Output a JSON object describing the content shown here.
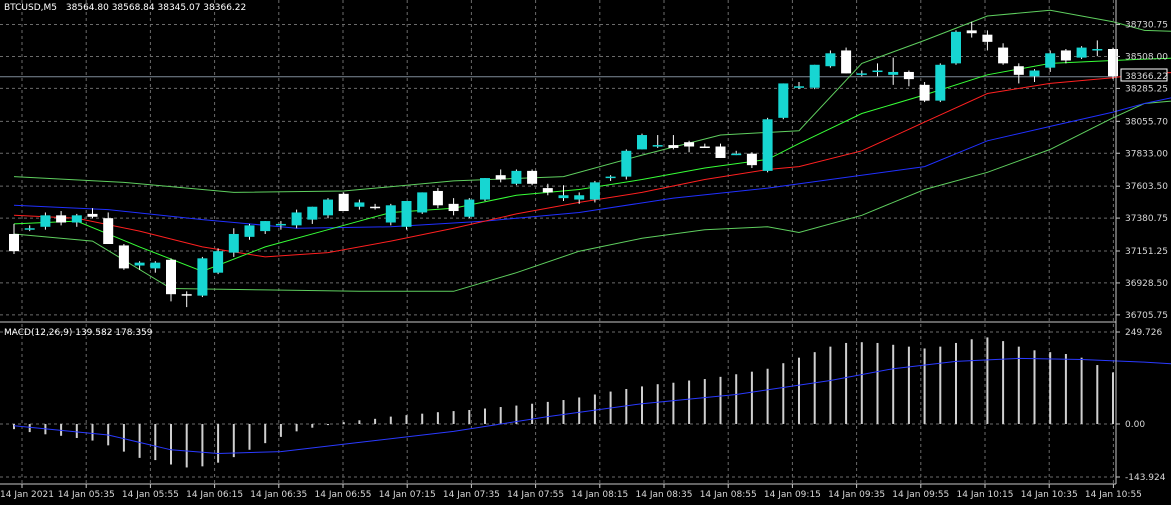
{
  "header": {
    "symbol": "BTCUSD,M5",
    "ohlc": "38564.80 38568.84 38345.07 38366.22"
  },
  "macd_header": {
    "label": "MACD(12,26,9) 139.582 178.359"
  },
  "current_price_label": "38366.22",
  "colors": {
    "background": "#000000",
    "grid": "#6b6b6b",
    "bull_candle": "#17d6d2",
    "bear_candle": "#ffffff",
    "bollinger": "#5fcf5f",
    "ma_fast": "#37ff37",
    "ma_mid": "#ff2020",
    "ma_slow": "#2030ff",
    "macd_hist": "#d0d0d0",
    "macd_signal": "#2a3aff",
    "price_line": "#7f8c99"
  },
  "chart_data": [
    {
      "type": "candlestick",
      "title": "BTCUSD,M5",
      "current_price": 38366.22,
      "ylim": [
        36670,
        38860
      ],
      "y_ticks": [
        {
          "value": 38730.75,
          "label": "38730.75"
        },
        {
          "value": 38508.0,
          "label": "38508.00"
        },
        {
          "value": 38285.25,
          "label": "38285.25"
        },
        {
          "value": 38055.7,
          "label": "38055.70"
        },
        {
          "value": 37833.0,
          "label": "37833.00"
        },
        {
          "value": 37603.5,
          "label": "37603.50"
        },
        {
          "value": 37380.75,
          "label": "37380.75"
        },
        {
          "value": 37151.25,
          "label": "37151.25"
        },
        {
          "value": 36928.5,
          "label": "36928.50"
        },
        {
          "value": 36705.75,
          "label": "36705.75"
        }
      ],
      "x_labels": [
        "14 Jan 2021",
        "14 Jan 05:35",
        "14 Jan 05:55",
        "14 Jan 06:15",
        "14 Jan 06:35",
        "14 Jan 06:55",
        "14 Jan 07:15",
        "14 Jan 07:35",
        "14 Jan 07:55",
        "14 Jan 08:15",
        "14 Jan 08:35",
        "14 Jan 08:55",
        "14 Jan 09:15",
        "14 Jan 09:35",
        "14 Jan 09:55",
        "14 Jan 10:15",
        "14 Jan 10:35",
        "14 Jan 10:55"
      ],
      "candles": [
        [
          37270,
          37340,
          37130,
          37150
        ],
        [
          37310,
          37330,
          37290,
          37310
        ],
        [
          37320,
          37420,
          37300,
          37400
        ],
        [
          37400,
          37430,
          37330,
          37350
        ],
        [
          37350,
          37410,
          37320,
          37400
        ],
        [
          37410,
          37450,
          37380,
          37390
        ],
        [
          37380,
          37420,
          37200,
          37200
        ],
        [
          37190,
          37200,
          37020,
          37030
        ],
        [
          37050,
          37080,
          37020,
          37070
        ],
        [
          37030,
          37080,
          37000,
          37070
        ],
        [
          37090,
          37100,
          36800,
          36850
        ],
        [
          36850,
          36870,
          36760,
          36840
        ],
        [
          36840,
          37110,
          36830,
          37100
        ],
        [
          37000,
          37170,
          36990,
          37150
        ],
        [
          37140,
          37310,
          37110,
          37270
        ],
        [
          37250,
          37340,
          37230,
          37330
        ],
        [
          37290,
          37360,
          37270,
          37360
        ],
        [
          37330,
          37360,
          37300,
          37340
        ],
        [
          37330,
          37440,
          37310,
          37420
        ],
        [
          37370,
          37460,
          37340,
          37460
        ],
        [
          37400,
          37520,
          37380,
          37510
        ],
        [
          37550,
          37560,
          37430,
          37430
        ],
        [
          37460,
          37510,
          37440,
          37490
        ],
        [
          37460,
          37480,
          37440,
          37450
        ],
        [
          37350,
          37480,
          37330,
          37470
        ],
        [
          37320,
          37500,
          37300,
          37500
        ],
        [
          37420,
          37560,
          37410,
          37560
        ],
        [
          37570,
          37590,
          37450,
          37470
        ],
        [
          37480,
          37520,
          37400,
          37430
        ],
        [
          37390,
          37520,
          37380,
          37510
        ],
        [
          37510,
          37660,
          37500,
          37660
        ],
        [
          37680,
          37720,
          37630,
          37650
        ],
        [
          37620,
          37720,
          37610,
          37710
        ],
        [
          37710,
          37720,
          37610,
          37620
        ],
        [
          37590,
          37620,
          37540,
          37560
        ],
        [
          37520,
          37610,
          37500,
          37540
        ],
        [
          37510,
          37560,
          37480,
          37540
        ],
        [
          37510,
          37640,
          37490,
          37630
        ],
        [
          37660,
          37680,
          37640,
          37670
        ],
        [
          37670,
          37860,
          37650,
          37850
        ],
        [
          37860,
          37970,
          37860,
          37960
        ],
        [
          37880,
          37960,
          37870,
          37890
        ],
        [
          37890,
          37960,
          37860,
          37870
        ],
        [
          37910,
          37920,
          37840,
          37880
        ],
        [
          37880,
          37900,
          37870,
          37870
        ],
        [
          37880,
          37900,
          37800,
          37800
        ],
        [
          37830,
          37850,
          37820,
          37830
        ],
        [
          37830,
          37840,
          37730,
          37750
        ],
        [
          37710,
          38080,
          37700,
          38070
        ],
        [
          38080,
          38320,
          38070,
          38320
        ],
        [
          38290,
          38330,
          38280,
          38300
        ],
        [
          38290,
          38450,
          38280,
          38450
        ],
        [
          38440,
          38550,
          38430,
          38530
        ],
        [
          38550,
          38570,
          38390,
          38390
        ],
        [
          38380,
          38410,
          38370,
          38390
        ],
        [
          38400,
          38460,
          38370,
          38410
        ],
        [
          38380,
          38500,
          38310,
          38400
        ],
        [
          38400,
          38410,
          38300,
          38350
        ],
        [
          38310,
          38330,
          38190,
          38200
        ],
        [
          38200,
          38460,
          38190,
          38450
        ],
        [
          38460,
          38690,
          38450,
          38680
        ],
        [
          38690,
          38750,
          38640,
          38670
        ],
        [
          38660,
          38690,
          38550,
          38610
        ],
        [
          38570,
          38600,
          38450,
          38460
        ],
        [
          38440,
          38460,
          38320,
          38380
        ],
        [
          38370,
          38420,
          38330,
          38410
        ],
        [
          38430,
          38550,
          38400,
          38530
        ],
        [
          38550,
          38560,
          38460,
          38480
        ],
        [
          38500,
          38580,
          38490,
          38570
        ],
        [
          38550,
          38620,
          38510,
          38560
        ],
        [
          38560,
          38570,
          38350,
          38370
        ]
      ],
      "bollinger_upper": [
        [
          0,
          37670
        ],
        [
          7,
          37630
        ],
        [
          14,
          37560
        ],
        [
          21,
          37570
        ],
        [
          28,
          37640
        ],
        [
          35,
          37670
        ],
        [
          40,
          37820
        ],
        [
          45,
          37960
        ],
        [
          50,
          37990
        ],
        [
          54,
          38460
        ],
        [
          58,
          38620
        ],
        [
          62,
          38790
        ],
        [
          66,
          38830
        ],
        [
          70,
          38750
        ],
        [
          72,
          38690
        ],
        [
          75,
          38680
        ]
      ],
      "bollinger_lower": [
        [
          0,
          37270
        ],
        [
          5,
          37220
        ],
        [
          10,
          36890
        ],
        [
          16,
          36880
        ],
        [
          22,
          36870
        ],
        [
          28,
          36870
        ],
        [
          32,
          37000
        ],
        [
          36,
          37150
        ],
        [
          40,
          37240
        ],
        [
          44,
          37300
        ],
        [
          48,
          37320
        ],
        [
          50,
          37280
        ],
        [
          54,
          37400
        ],
        [
          58,
          37580
        ],
        [
          62,
          37700
        ],
        [
          66,
          37860
        ],
        [
          70,
          38080
        ],
        [
          72,
          38180
        ],
        [
          75,
          38210
        ]
      ],
      "ma_fast": [
        [
          0,
          37340
        ],
        [
          4,
          37360
        ],
        [
          8,
          37180
        ],
        [
          12,
          37010
        ],
        [
          16,
          37180
        ],
        [
          20,
          37300
        ],
        [
          24,
          37420
        ],
        [
          28,
          37450
        ],
        [
          32,
          37540
        ],
        [
          36,
          37580
        ],
        [
          40,
          37650
        ],
        [
          44,
          37730
        ],
        [
          48,
          37790
        ],
        [
          50,
          37900
        ],
        [
          54,
          38110
        ],
        [
          58,
          38240
        ],
        [
          62,
          38380
        ],
        [
          66,
          38460
        ],
        [
          70,
          38480
        ],
        [
          72,
          38490
        ],
        [
          75,
          38500
        ]
      ],
      "ma_mid": [
        [
          0,
          37400
        ],
        [
          4,
          37380
        ],
        [
          8,
          37290
        ],
        [
          12,
          37180
        ],
        [
          16,
          37110
        ],
        [
          20,
          37140
        ],
        [
          24,
          37220
        ],
        [
          28,
          37310
        ],
        [
          32,
          37410
        ],
        [
          36,
          37490
        ],
        [
          40,
          37560
        ],
        [
          44,
          37650
        ],
        [
          48,
          37720
        ],
        [
          50,
          37740
        ],
        [
          54,
          37850
        ],
        [
          58,
          38050
        ],
        [
          62,
          38250
        ],
        [
          66,
          38320
        ],
        [
          70,
          38360
        ],
        [
          72,
          38390
        ],
        [
          75,
          38400
        ]
      ],
      "ma_slow": [
        [
          0,
          37470
        ],
        [
          6,
          37440
        ],
        [
          12,
          37370
        ],
        [
          18,
          37310
        ],
        [
          24,
          37320
        ],
        [
          30,
          37360
        ],
        [
          36,
          37420
        ],
        [
          42,
          37520
        ],
        [
          48,
          37590
        ],
        [
          52,
          37650
        ],
        [
          58,
          37740
        ],
        [
          62,
          37920
        ],
        [
          66,
          38020
        ],
        [
          70,
          38120
        ],
        [
          72,
          38180
        ],
        [
          75,
          38250
        ]
      ]
    },
    {
      "type": "bar",
      "title": "MACD(12,26,9) 139.582 178.359",
      "macd_value": 139.582,
      "signal_value": 178.359,
      "ylim": [
        -143.924,
        249.726
      ],
      "y_ticks": [
        {
          "value": 249.726,
          "label": "249.726"
        },
        {
          "value": 0,
          "label": "0.00"
        },
        {
          "value": -143.924,
          "label": "-143.924"
        }
      ],
      "histogram": [
        -14,
        -22,
        -28,
        -32,
        -38,
        -45,
        -58,
        -75,
        -92,
        -98,
        -110,
        -118,
        -115,
        -105,
        -90,
        -70,
        -52,
        -35,
        -20,
        -10,
        -3,
        5,
        10,
        14,
        20,
        24,
        28,
        32,
        35,
        38,
        42,
        46,
        50,
        55,
        60,
        65,
        72,
        80,
        88,
        95,
        102,
        108,
        112,
        118,
        122,
        128,
        135,
        142,
        150,
        165,
        180,
        195,
        210,
        220,
        222,
        220,
        215,
        210,
        205,
        210,
        220,
        230,
        235,
        225,
        210,
        200,
        195,
        190,
        180,
        160,
        140
      ],
      "signal": [
        [
          0,
          -5
        ],
        [
          6,
          -30
        ],
        [
          10,
          -70
        ],
        [
          13,
          -80
        ],
        [
          17,
          -75
        ],
        [
          22,
          -50
        ],
        [
          28,
          -20
        ],
        [
          34,
          20
        ],
        [
          40,
          55
        ],
        [
          46,
          80
        ],
        [
          52,
          118
        ],
        [
          56,
          150
        ],
        [
          60,
          170
        ],
        [
          64,
          178
        ],
        [
          68,
          175
        ],
        [
          72,
          168
        ],
        [
          75,
          160
        ]
      ]
    }
  ]
}
